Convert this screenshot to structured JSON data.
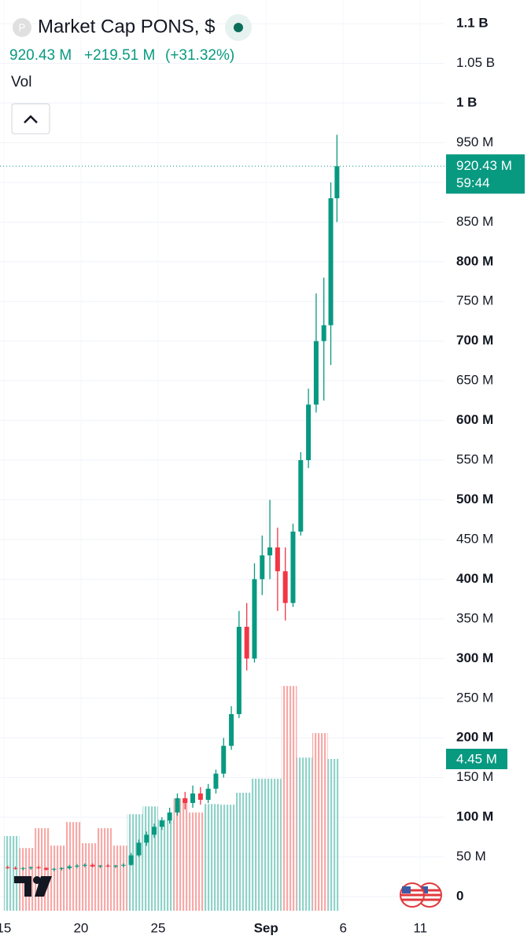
{
  "chart_data": {
    "type": "candlestick",
    "title": "Market Cap PONS, $",
    "icon_letter": "P",
    "header_value": "920.43 M",
    "header_change": "+219.51 M",
    "header_change_pct": "(+31.32%)",
    "volume_name": "Vol",
    "up_color": "#089981",
    "down_color": "#f23645",
    "x": [
      15.25,
      15.75,
      16.25,
      16.75,
      17.25,
      17.75,
      18.25,
      18.75,
      19.25,
      19.75,
      20.25,
      20.75,
      21.25,
      21.75,
      22.25,
      22.75,
      23.25,
      23.75,
      24.25,
      24.75,
      25.25,
      25.75,
      26.25,
      26.75,
      27.25,
      27.75,
      28.25,
      28.75,
      29.25,
      29.75,
      30.25,
      30.75,
      31.25,
      31.75,
      32.25,
      32.75,
      33.25,
      33.75,
      34.25,
      34.75,
      35.25,
      35.75,
      36.2,
      36.6
    ],
    "open": [
      37,
      36,
      35,
      36,
      37,
      36,
      34,
      35,
      36,
      38,
      39,
      40,
      38,
      39,
      38,
      39,
      40,
      52,
      68,
      78,
      88,
      96,
      106,
      124,
      118,
      130,
      122,
      136,
      155,
      190,
      230,
      340,
      300,
      400,
      430,
      440,
      410,
      370,
      460,
      550,
      620,
      700,
      720,
      880
    ],
    "high": [
      39,
      38,
      37,
      38,
      39,
      37,
      36,
      37,
      40,
      41,
      42,
      42,
      40,
      41,
      40,
      42,
      55,
      72,
      82,
      92,
      100,
      112,
      130,
      132,
      140,
      138,
      142,
      160,
      200,
      240,
      360,
      370,
      420,
      455,
      500,
      465,
      440,
      470,
      560,
      640,
      760,
      780,
      900,
      960
    ],
    "low": [
      35,
      34,
      33,
      34,
      35,
      33,
      32,
      33,
      34,
      36,
      37,
      37,
      36,
      37,
      36,
      37,
      39,
      50,
      64,
      74,
      84,
      92,
      102,
      110,
      112,
      116,
      118,
      130,
      150,
      185,
      225,
      285,
      295,
      380,
      400,
      360,
      348,
      365,
      455,
      540,
      610,
      625,
      670,
      850
    ],
    "close": [
      36,
      35,
      36,
      37,
      36,
      34,
      35,
      36,
      38,
      39,
      40,
      38,
      39,
      38,
      39,
      40,
      52,
      68,
      78,
      88,
      96,
      106,
      124,
      118,
      130,
      122,
      136,
      155,
      190,
      230,
      340,
      300,
      400,
      430,
      440,
      410,
      370,
      460,
      550,
      620,
      700,
      720,
      880,
      920.43
    ],
    "xlim": [
      14.75,
      43.57
    ],
    "xticks": [
      15,
      20,
      25,
      {
        "value": 32,
        "label": "Sep"
      },
      {
        "value": 37,
        "label": "6"
      },
      {
        "value": 42,
        "label": "11"
      }
    ],
    "ylim": [
      -17.8,
      1129.8
    ],
    "yticks": [
      0,
      {
        "value": 50,
        "label": "50 M"
      },
      {
        "value": 100,
        "label": "100 M"
      },
      {
        "value": 150,
        "label": "150 M"
      },
      {
        "value": 200,
        "label": "200 M"
      },
      {
        "value": 250,
        "label": "250 M"
      },
      {
        "value": 300,
        "label": "300 M"
      },
      {
        "value": 350,
        "label": "350 M"
      },
      {
        "value": 400,
        "label": "400 M"
      },
      {
        "value": 450,
        "label": "450 M"
      },
      {
        "value": 500,
        "label": "500 M"
      },
      {
        "value": 550,
        "label": "550 M"
      },
      {
        "value": 600,
        "label": "600 M"
      },
      {
        "value": 650,
        "label": "650 M"
      },
      {
        "value": 700,
        "label": "700 M"
      },
      {
        "value": 750,
        "label": "750 M"
      },
      {
        "value": 800,
        "label": "800 M"
      },
      {
        "value": 850,
        "label": "850 M"
      },
      {
        "value": 900,
        "label": "900 M"
      },
      {
        "value": 950,
        "label": "950 M"
      },
      {
        "value": 1000,
        "label": "1 B"
      },
      {
        "value": 1050,
        "label": "1.05 B"
      },
      {
        "value": 1100,
        "label": "1.1 B"
      }
    ],
    "grid": true,
    "current_price": {
      "value": 920.43,
      "label": "920.43 M",
      "timer": "59:44"
    },
    "volume": {
      "x": [
        15,
        16,
        17,
        18,
        19,
        20,
        21,
        22,
        23,
        24,
        25,
        26,
        27,
        28,
        29,
        30,
        31,
        32,
        33,
        34,
        35,
        36
      ],
      "values": [
        2.19,
        1.84,
        2.42,
        1.91,
        2.6,
        1.98,
        2.42,
        1.91,
        2.83,
        3.06,
        2.67,
        3.29,
        2.88,
        3.13,
        3.11,
        3.46,
        3.87,
        3.87,
        6.59,
        4.49,
        5.21,
        4.45
      ],
      "directions": [
        "up",
        "down",
        "down",
        "down",
        "down",
        "down",
        "down",
        "down",
        "up",
        "up",
        "up",
        "down",
        "down",
        "up",
        "up",
        "up",
        "up",
        "up",
        "down",
        "up",
        "down",
        "up"
      ],
      "ylim": [
        0,
        26.7
      ],
      "last_label": "4.45 M"
    }
  }
}
